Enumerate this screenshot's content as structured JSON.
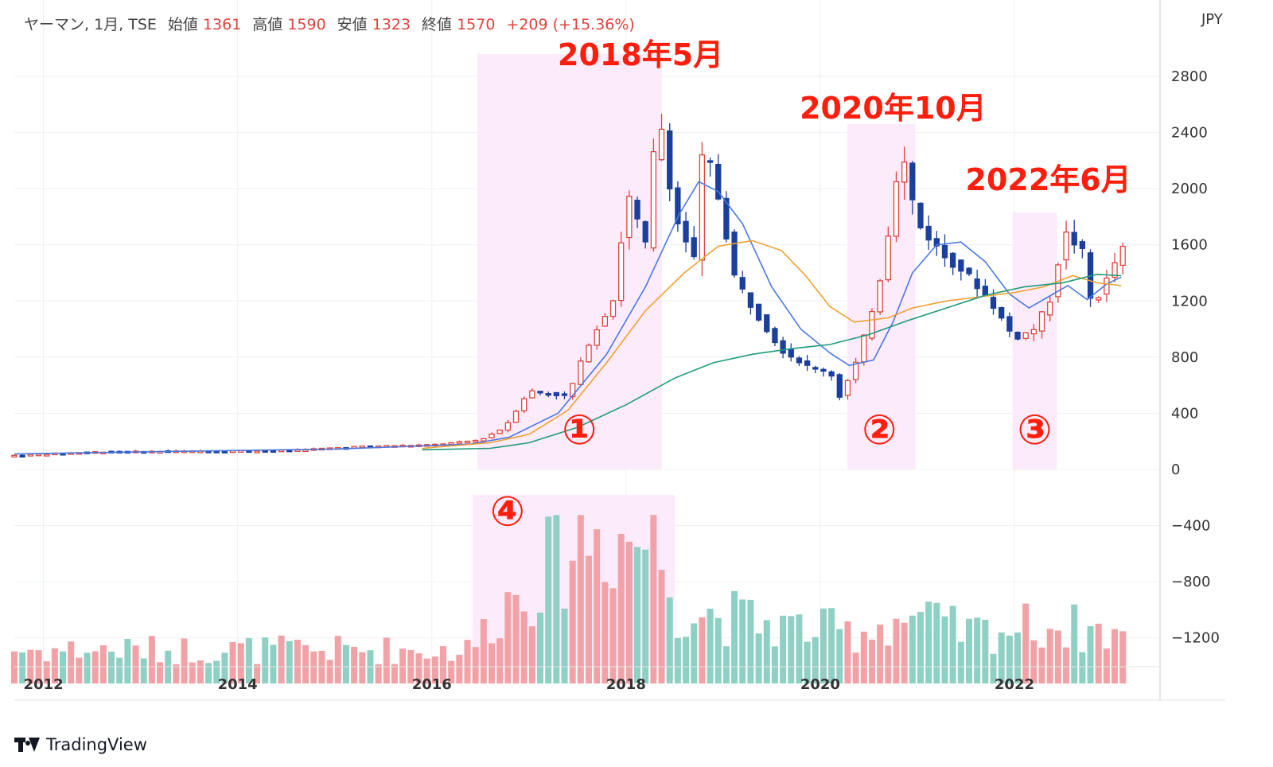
{
  "header": {
    "symbol_line": "ヤーマン, 1月, TSE",
    "open_label": "始値",
    "open_value": "1361",
    "high_label": "高値",
    "high_value": "1590",
    "low_label": "安値",
    "low_value": "1323",
    "close_label": "終値",
    "close_value": "1570",
    "change": "+209 (+15.36%)"
  },
  "currency": "JPY",
  "brand": "TradingView",
  "colors": {
    "up": "#e0433b",
    "down": "#1b3f9c",
    "ma_fast": "#4a78e0",
    "ma_mid": "#f0a030",
    "ma_slow": "#1f9a7a",
    "vol_up": "#f2a1a6",
    "vol_down": "#8fd0c4",
    "highlight": "#fce9fb",
    "annotation": "#ff1e0d"
  },
  "chart_data": {
    "type": "candlestick",
    "y_ticks": [
      "2800",
      "2400",
      "2000",
      "1600",
      "1200",
      "800",
      "400",
      "0",
      "−400",
      "−800",
      "−1200"
    ],
    "ylim": [
      -1400,
      3000
    ],
    "x_ticks": [
      "2012",
      "2014",
      "2016",
      "2018",
      "2020",
      "2022"
    ],
    "xlim": [
      2011.7,
      2023.5
    ],
    "anchors": [
      {
        "t": 2011.7,
        "p": 100
      },
      {
        "t": 2012.5,
        "p": 125
      },
      {
        "t": 2013.5,
        "p": 130
      },
      {
        "t": 2014.5,
        "p": 135
      },
      {
        "t": 2015.3,
        "p": 165
      },
      {
        "t": 2016.0,
        "p": 175
      },
      {
        "t": 2016.5,
        "p": 210
      },
      {
        "t": 2016.75,
        "p": 300
      },
      {
        "t": 2017.0,
        "p": 560
      },
      {
        "t": 2017.4,
        "p": 520
      },
      {
        "t": 2017.6,
        "p": 880
      },
      {
        "t": 2017.9,
        "p": 1250
      },
      {
        "t": 2018.0,
        "p": 2000
      },
      {
        "t": 2018.2,
        "p": 1600
      },
      {
        "t": 2018.33,
        "p": 2600
      },
      {
        "t": 2018.5,
        "p": 1800
      },
      {
        "t": 2018.7,
        "p": 1500
      },
      {
        "t": 2018.8,
        "p": 2350
      },
      {
        "t": 2019.0,
        "p": 1800
      },
      {
        "t": 2019.1,
        "p": 1400
      },
      {
        "t": 2019.3,
        "p": 1150
      },
      {
        "t": 2019.6,
        "p": 850
      },
      {
        "t": 2019.9,
        "p": 720
      },
      {
        "t": 2020.1,
        "p": 700
      },
      {
        "t": 2020.2,
        "p": 520
      },
      {
        "t": 2020.35,
        "p": 720
      },
      {
        "t": 2020.5,
        "p": 1050
      },
      {
        "t": 2020.65,
        "p": 1450
      },
      {
        "t": 2020.83,
        "p": 2300
      },
      {
        "t": 2021.0,
        "p": 1750
      },
      {
        "t": 2021.3,
        "p": 1500
      },
      {
        "t": 2021.5,
        "p": 1400
      },
      {
        "t": 2021.75,
        "p": 1200
      },
      {
        "t": 2022.0,
        "p": 930
      },
      {
        "t": 2022.2,
        "p": 1000
      },
      {
        "t": 2022.4,
        "p": 1250
      },
      {
        "t": 2022.5,
        "p": 1700
      },
      {
        "t": 2022.7,
        "p": 1550
      },
      {
        "t": 2022.8,
        "p": 1150
      },
      {
        "t": 2022.95,
        "p": 1350
      },
      {
        "t": 2023.1,
        "p": 1570
      }
    ],
    "ma_fast": [
      [
        2011.7,
        110
      ],
      [
        2013.0,
        125
      ],
      [
        2015.0,
        145
      ],
      [
        2016.4,
        180
      ],
      [
        2016.8,
        230
      ],
      [
        2017.3,
        400
      ],
      [
        2017.8,
        820
      ],
      [
        2018.2,
        1300
      ],
      [
        2018.55,
        1820
      ],
      [
        2018.75,
        2050
      ],
      [
        2018.95,
        1980
      ],
      [
        2019.2,
        1750
      ],
      [
        2019.5,
        1300
      ],
      [
        2019.8,
        1000
      ],
      [
        2020.1,
        830
      ],
      [
        2020.3,
        740
      ],
      [
        2020.55,
        780
      ],
      [
        2020.75,
        1050
      ],
      [
        2020.95,
        1400
      ],
      [
        2021.2,
        1600
      ],
      [
        2021.45,
        1620
      ],
      [
        2021.7,
        1480
      ],
      [
        2021.95,
        1250
      ],
      [
        2022.15,
        1150
      ],
      [
        2022.35,
        1230
      ],
      [
        2022.55,
        1310
      ],
      [
        2022.75,
        1210
      ],
      [
        2022.95,
        1320
      ],
      [
        2023.1,
        1370
      ]
    ],
    "ma_mid": [
      [
        2015.9,
        150
      ],
      [
        2016.6,
        190
      ],
      [
        2017.0,
        250
      ],
      [
        2017.4,
        420
      ],
      [
        2017.8,
        760
      ],
      [
        2018.2,
        1130
      ],
      [
        2018.6,
        1400
      ],
      [
        2018.95,
        1590
      ],
      [
        2019.3,
        1630
      ],
      [
        2019.6,
        1560
      ],
      [
        2019.85,
        1380
      ],
      [
        2020.1,
        1160
      ],
      [
        2020.35,
        1050
      ],
      [
        2020.7,
        1080
      ],
      [
        2020.95,
        1150
      ],
      [
        2021.3,
        1200
      ],
      [
        2021.65,
        1230
      ],
      [
        2022.0,
        1260
      ],
      [
        2022.3,
        1300
      ],
      [
        2022.6,
        1380
      ],
      [
        2022.85,
        1330
      ],
      [
        2023.1,
        1310
      ]
    ],
    "ma_slow": [
      [
        2015.9,
        140
      ],
      [
        2016.6,
        150
      ],
      [
        2017.0,
        190
      ],
      [
        2017.5,
        300
      ],
      [
        2018.0,
        460
      ],
      [
        2018.5,
        650
      ],
      [
        2018.9,
        760
      ],
      [
        2019.3,
        820
      ],
      [
        2019.7,
        860
      ],
      [
        2020.1,
        890
      ],
      [
        2020.5,
        960
      ],
      [
        2020.9,
        1060
      ],
      [
        2021.3,
        1150
      ],
      [
        2021.7,
        1240
      ],
      [
        2022.1,
        1300
      ],
      [
        2022.5,
        1330
      ],
      [
        2022.85,
        1390
      ],
      [
        2023.1,
        1380
      ]
    ],
    "volume_anchors": [
      {
        "t": 2011.7,
        "v": 0.2
      },
      {
        "t": 2016.4,
        "v": 0.2
      },
      {
        "t": 2016.7,
        "v": 0.45
      },
      {
        "t": 2017.0,
        "v": 0.6
      },
      {
        "t": 2017.6,
        "v": 0.9
      },
      {
        "t": 2018.3,
        "v": 0.85
      },
      {
        "t": 2018.55,
        "v": 0.45
      },
      {
        "t": 2019.5,
        "v": 0.35
      },
      {
        "t": 2020.3,
        "v": 0.3
      },
      {
        "t": 2020.9,
        "v": 0.4
      },
      {
        "t": 2021.5,
        "v": 0.3
      },
      {
        "t": 2022.3,
        "v": 0.35
      },
      {
        "t": 2023.1,
        "v": 0.3
      }
    ],
    "highlights": [
      {
        "t0": 2016.47,
        "t1": 2018.37,
        "p0": 0,
        "p1": 2960
      },
      {
        "t0": 2020.28,
        "t1": 2020.98,
        "p0": 0,
        "p1": 2460
      },
      {
        "t0": 2021.98,
        "t1": 2022.44,
        "p0": 0,
        "p1": 1830
      },
      {
        "t0": 2016.42,
        "t1": 2018.5,
        "p0": -1400,
        "p1": -180
      }
    ],
    "annotations": [
      {
        "text": "2018年5月",
        "t": 2018.15,
        "p": 2880
      },
      {
        "text": "2020年10月",
        "t": 2020.75,
        "p": 2500
      },
      {
        "text": "2022年6月",
        "t": 2022.35,
        "p": 1990
      }
    ],
    "circled": [
      {
        "text": "①",
        "t": 2017.52,
        "p": 180
      },
      {
        "text": "②",
        "t": 2020.61,
        "p": 180
      },
      {
        "text": "③",
        "t": 2022.21,
        "p": 180
      },
      {
        "text": "④",
        "t": 2016.78,
        "p": -400
      }
    ]
  }
}
